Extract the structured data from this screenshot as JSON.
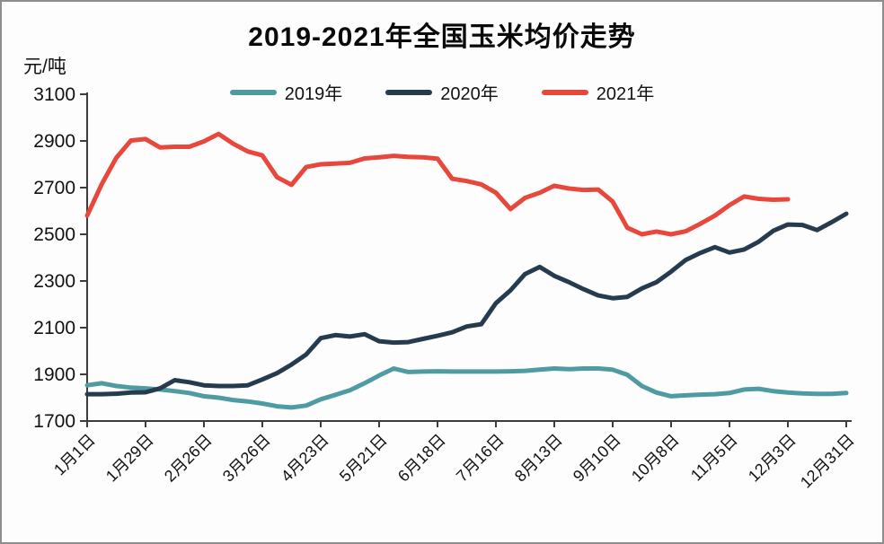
{
  "page": {
    "background": "#fdfdfd",
    "frame_border": "#8d8d8d"
  },
  "chart_data": {
    "type": "line",
    "title": "2019-2021年全国玉米均价走势",
    "unit_label": "元/吨",
    "grid": false,
    "legend_position": "top",
    "axis_color": "#3c3c3c",
    "text_color": "#111111",
    "y_axis": {
      "min": 1700,
      "max": 3100,
      "step": 200,
      "tick_labels": [
        "3100",
        "2900",
        "2700",
        "2500",
        "2300",
        "2100",
        "1900",
        "1700"
      ]
    },
    "x_axis": {
      "tick_labels": [
        "1月1日",
        "1月29日",
        "2月26日",
        "3月26日",
        "4月23日",
        "5月21日",
        "6月18日",
        "7月16日",
        "8月13日",
        "9月10日",
        "10月8日",
        "11月5日",
        "12月3日",
        "12月31日"
      ],
      "tick_days": [
        0,
        28,
        56,
        84,
        112,
        140,
        168,
        196,
        224,
        252,
        280,
        308,
        336,
        364
      ],
      "interval_days": 7,
      "total_days": 364
    },
    "series": [
      {
        "name": "2019年",
        "color": "#4F9BA3",
        "values": [
          1853,
          1862,
          1850,
          1843,
          1840,
          1835,
          1828,
          1820,
          1806,
          1800,
          1790,
          1784,
          1775,
          1763,
          1758,
          1766,
          1793,
          1812,
          1832,
          1862,
          1895,
          1925,
          1910,
          1912,
          1913,
          1912,
          1912,
          1912,
          1912,
          1913,
          1915,
          1920,
          1925,
          1922,
          1925,
          1925,
          1920,
          1898,
          1850,
          1822,
          1806,
          1810,
          1813,
          1815,
          1820,
          1835,
          1838,
          1828,
          1822,
          1818,
          1816,
          1816,
          1820
        ]
      },
      {
        "name": "2020年",
        "color": "#273B4F",
        "values": [
          1815,
          1815,
          1817,
          1822,
          1823,
          1840,
          1875,
          1866,
          1853,
          1850,
          1850,
          1853,
          1878,
          1905,
          1942,
          1985,
          2055,
          2068,
          2062,
          2072,
          2042,
          2036,
          2038,
          2052,
          2065,
          2080,
          2105,
          2115,
          2205,
          2260,
          2330,
          2360,
          2322,
          2295,
          2265,
          2238,
          2226,
          2232,
          2268,
          2295,
          2340,
          2390,
          2420,
          2445,
          2422,
          2435,
          2468,
          2515,
          2542,
          2540,
          2518,
          2552,
          2588
        ]
      },
      {
        "name": "2021年",
        "color": "#E8473B",
        "values": [
          2580,
          2715,
          2828,
          2902,
          2908,
          2872,
          2875,
          2875,
          2898,
          2930,
          2888,
          2855,
          2838,
          2745,
          2712,
          2788,
          2800,
          2803,
          2806,
          2825,
          2830,
          2836,
          2832,
          2830,
          2824,
          2738,
          2728,
          2714,
          2678,
          2608,
          2656,
          2678,
          2708,
          2696,
          2690,
          2692,
          2640,
          2528,
          2500,
          2512,
          2500,
          2513,
          2545,
          2580,
          2625,
          2662,
          2652,
          2648,
          2650,
          null,
          null,
          null,
          null
        ]
      }
    ]
  }
}
